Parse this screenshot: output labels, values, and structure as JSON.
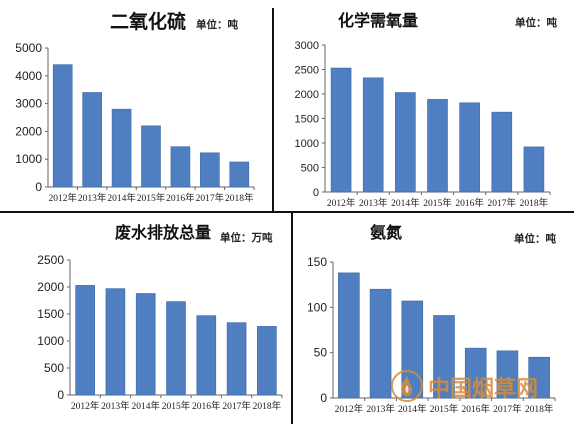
{
  "colors": {
    "bar": "#4f7fc0",
    "bar_stroke": "#3c68a8",
    "watermark": "#d98c3a"
  },
  "watermark": {
    "text": "中国烟草网",
    "icon": "flame-icon"
  },
  "chart_data": [
    {
      "type": "bar",
      "title": "二氧化硫",
      "unit": "单位：吨",
      "categories": [
        "2012年",
        "2013年",
        "2014年",
        "2015年",
        "2016年",
        "2017年",
        "2018年"
      ],
      "values": [
        4400,
        3400,
        2800,
        2200,
        1450,
        1230,
        900
      ],
      "ylim": [
        0,
        5000
      ],
      "yticks": [
        "0",
        "1000",
        "2000",
        "3000",
        "4000",
        "5000"
      ],
      "xlabel": "",
      "ylabel": "",
      "grid": false,
      "legend": "none"
    },
    {
      "type": "bar",
      "title": "化学需氧量",
      "unit": "单位：吨",
      "categories": [
        "2012年",
        "2013年",
        "2014年",
        "2015年",
        "2016年",
        "2017年",
        "2018年"
      ],
      "values": [
        2530,
        2330,
        2030,
        1890,
        1820,
        1630,
        920
      ],
      "ylim": [
        0,
        3000
      ],
      "yticks": [
        "0",
        "500",
        "1000",
        "1500",
        "2000",
        "2500",
        "3000"
      ],
      "xlabel": "",
      "ylabel": "",
      "grid": false,
      "legend": "none"
    },
    {
      "type": "bar",
      "title": "废水排放总量",
      "unit": "单位：万吨",
      "categories": [
        "2012年",
        "2013年",
        "2014年",
        "2015年",
        "2016年",
        "2017年",
        "2018年"
      ],
      "values": [
        2030,
        1970,
        1880,
        1730,
        1470,
        1340,
        1270
      ],
      "ylim": [
        0,
        2500
      ],
      "yticks": [
        "0",
        "500",
        "1000",
        "1500",
        "2000",
        "2500"
      ],
      "xlabel": "",
      "ylabel": "",
      "grid": false,
      "legend": "none"
    },
    {
      "type": "bar",
      "title": "氨氮",
      "unit": "单位：吨",
      "categories": [
        "2012年",
        "2013年",
        "2014年",
        "2015年",
        "2016年",
        "2017年",
        "2018年"
      ],
      "values": [
        138,
        120,
        107,
        91,
        55,
        52,
        45
      ],
      "ylim": [
        0,
        150
      ],
      "yticks": [
        "0",
        "50",
        "100",
        "150"
      ],
      "xlabel": "",
      "ylabel": "",
      "grid": false,
      "legend": "none"
    }
  ]
}
